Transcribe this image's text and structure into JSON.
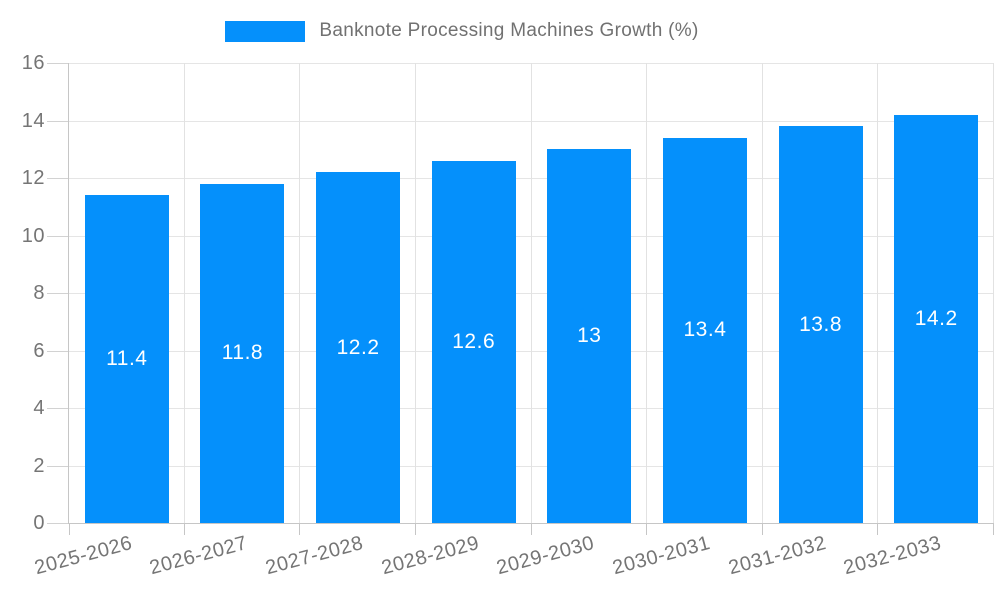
{
  "legend": {
    "label": "Banknote Processing Machines Growth (%)"
  },
  "chart_data": {
    "type": "bar",
    "title": "Banknote Processing Machines Growth (%)",
    "categories": [
      "2025-2026",
      "2026-2027",
      "2027-2028",
      "2028-2029",
      "2029-2030",
      "2030-2031",
      "2031-2032",
      "2032-2033"
    ],
    "values": [
      11.4,
      11.8,
      12.2,
      12.6,
      13,
      13.4,
      13.8,
      14.2
    ],
    "xlabel": "",
    "ylabel": "",
    "ylim": [
      0,
      16
    ],
    "yticks": [
      0,
      2,
      4,
      6,
      8,
      10,
      12,
      14,
      16
    ],
    "grid": true,
    "legend_position": "top",
    "x_label_rotation_deg": -15,
    "bar_color": "#0590fb",
    "value_label_color": "#ffffff",
    "axis_label_color": "#757575",
    "gridline_color": "#e5e5e5",
    "axis_line_color": "#c6c6c6"
  }
}
